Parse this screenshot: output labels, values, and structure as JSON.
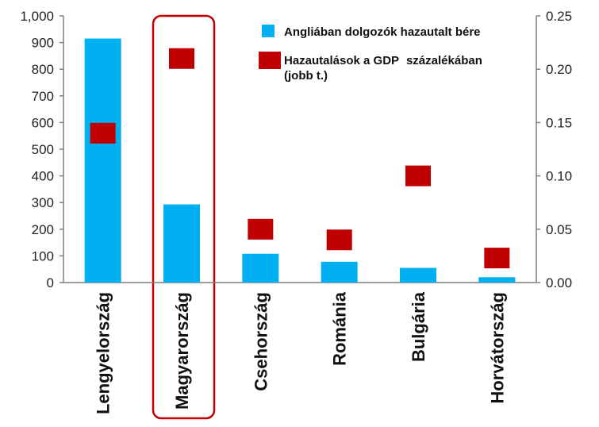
{
  "chart_data": {
    "type": "bar",
    "categories": [
      "Lengyelország",
      "Magyarország",
      "Csehország",
      "Románia",
      "Bulgária",
      "Horvátország"
    ],
    "series": [
      {
        "name": "Angliában dolgozók hazautalt bére",
        "kind": "bar",
        "axis": "left",
        "color": "#00b0f0",
        "values": [
          915,
          293,
          108,
          78,
          55,
          20
        ]
      },
      {
        "name": "Hazautalások a GDP százalékában (jobb t.)",
        "kind": "marker",
        "axis": "right",
        "color": "#c00000",
        "values": [
          0.14,
          0.21,
          0.05,
          0.04,
          0.1,
          0.023
        ]
      }
    ],
    "y_left": {
      "ylim": [
        0,
        1000
      ],
      "ticks": [
        0,
        100,
        200,
        300,
        400,
        500,
        600,
        700,
        800,
        900,
        1000
      ],
      "tick_labels": [
        "0",
        "100",
        "200",
        "300",
        "400",
        "500",
        "600",
        "700",
        "800",
        "900",
        "1,000"
      ]
    },
    "y_right": {
      "ylim": [
        0,
        0.25
      ],
      "ticks": [
        0,
        0.05,
        0.1,
        0.15,
        0.2,
        0.25
      ],
      "tick_labels": [
        "0.00",
        "0.05",
        "0.10",
        "0.15",
        "0.20",
        "0.25"
      ]
    },
    "legend": {
      "placement": "top-right",
      "entries": [
        "Angliában dolgozók hazautalt bére",
        "Hazautalások a GDP",
        "százalékában",
        "(jobb t.)"
      ]
    },
    "highlight": {
      "category": "Magyarország",
      "color": "#c00000"
    },
    "grid": false
  }
}
